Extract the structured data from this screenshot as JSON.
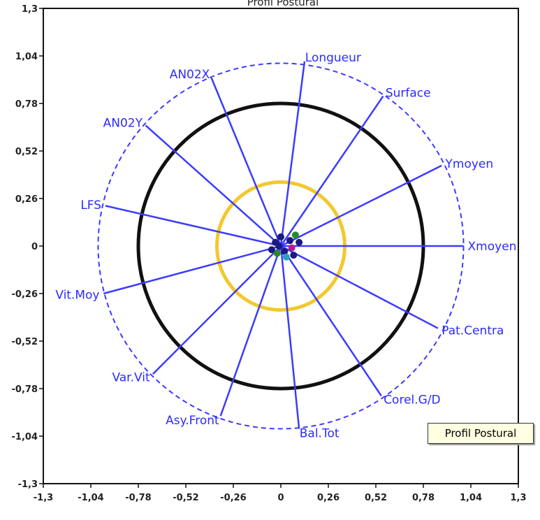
{
  "chart_data": {
    "type": "scatter",
    "title": "Profil Postural",
    "xlim": [
      -1.3,
      1.3
    ],
    "ylim": [
      -1.3,
      1.3
    ],
    "xticks": [
      "-1,3",
      "-1,04",
      "-0,78",
      "-0,52",
      "-0,26",
      "0",
      "0,26",
      "0,52",
      "0,78",
      "1,04",
      "1,3"
    ],
    "yticks": [
      "1,3",
      "1,04",
      "0,78",
      "0,52",
      "0,26",
      "0",
      "-0,26",
      "-0,52",
      "-0,78",
      "-1,04",
      "-1,3"
    ],
    "vectors": [
      {
        "label": "Longueur",
        "x": 0.13,
        "y": 1.01
      },
      {
        "label": "Surface",
        "x": 0.56,
        "y": 0.82
      },
      {
        "label": "Ymoyen",
        "x": 0.88,
        "y": 0.44
      },
      {
        "label": "Xmoyen",
        "x": 1.0,
        "y": 0.0
      },
      {
        "label": "Pat.Centra",
        "x": 0.86,
        "y": -0.45
      },
      {
        "label": "Corel.G/D",
        "x": 0.55,
        "y": -0.82
      },
      {
        "label": "Bal.Tot",
        "x": 0.1,
        "y": -1.0
      },
      {
        "label": "Asy.Front",
        "x": -0.33,
        "y": -0.93
      },
      {
        "label": "Var.Vit",
        "x": -0.7,
        "y": -0.7
      },
      {
        "label": "Vit.Moy",
        "x": -0.97,
        "y": -0.26
      },
      {
        "label": "LFS",
        "x": -0.96,
        "y": 0.22
      },
      {
        "label": "AN02Y",
        "x": -0.74,
        "y": 0.66
      },
      {
        "label": "AN02X",
        "x": -0.38,
        "y": 0.92
      }
    ],
    "circles": [
      {
        "r": 0.35,
        "color": "#f2c830",
        "style": "solid"
      },
      {
        "r": 0.78,
        "color": "#111111",
        "style": "solid"
      },
      {
        "r": 1.0,
        "color": "#3b3bff",
        "style": "dashed"
      }
    ],
    "colors": {
      "vector": "#3b3bff",
      "frame": "#111111",
      "center_blob": "#1a1a80"
    },
    "grid": false,
    "legend": "none"
  },
  "tooltip": {
    "text": "Profil Postural"
  }
}
